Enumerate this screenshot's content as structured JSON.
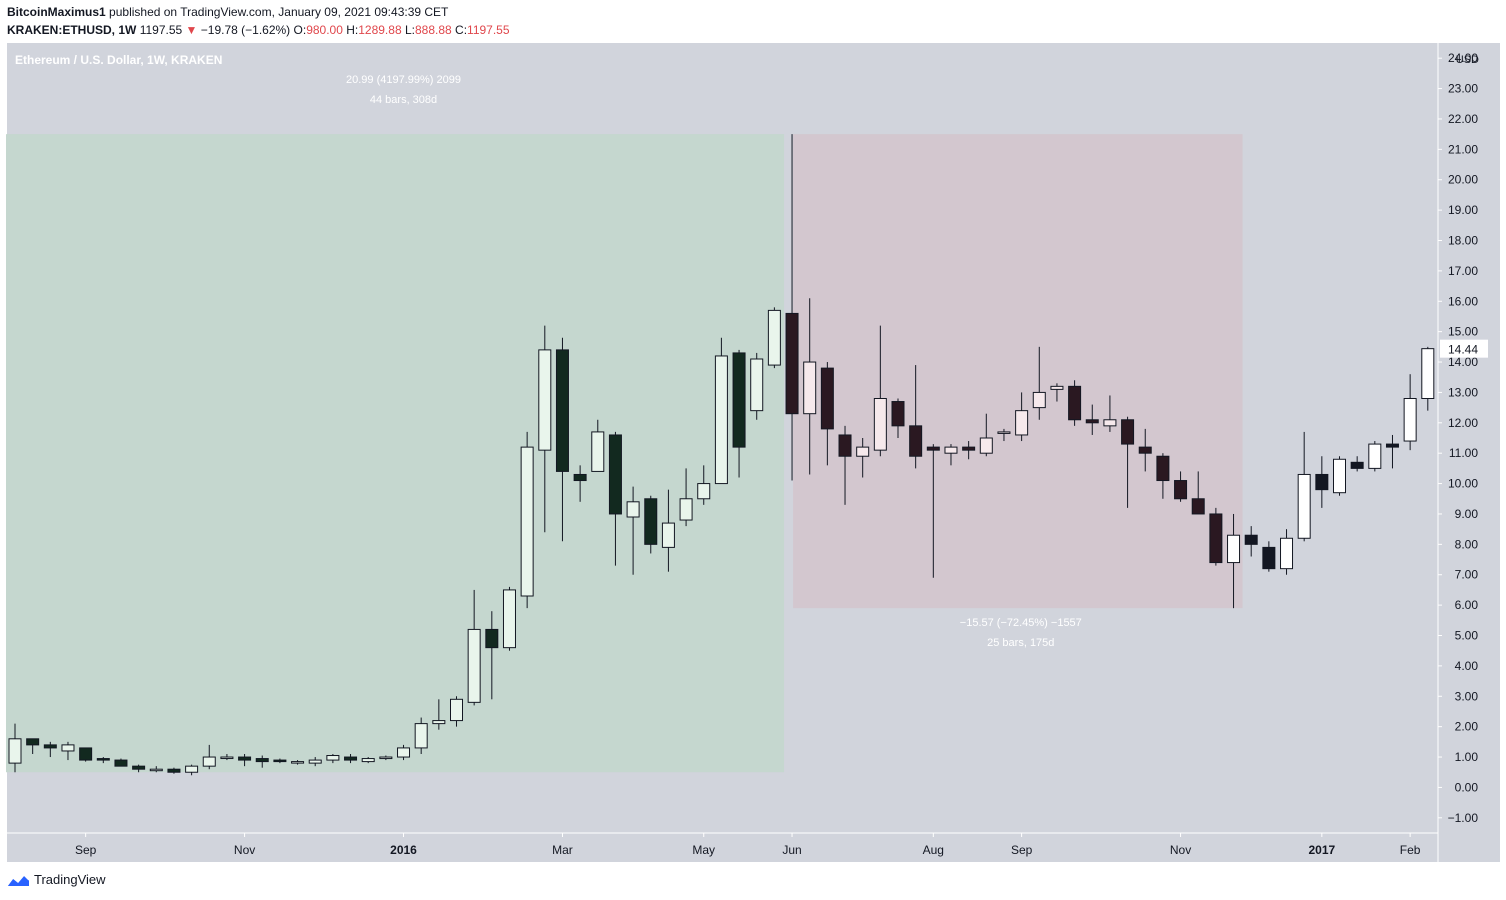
{
  "header": {
    "author": "BitcoinMaximus1",
    "published_text": "published on TradingView.com, January 09, 2021 09:43:39 CET",
    "symbol": "KRAKEN:ETHUSD",
    "interval": "1W",
    "last": "1197.55",
    "change": "−19.78 (−1.62%)",
    "o_label": "O:",
    "o_value": "980.00",
    "h_label": "H:",
    "h_value": "1289.88",
    "l_label": "L:",
    "l_value": "888.88",
    "c_label": "C:",
    "c_value": "1197.55"
  },
  "footer": {
    "brand": "TradingView"
  },
  "colors": {
    "plot_bg": "#d1d4dc",
    "green_zone": "#c5d7cf",
    "red_zone": "#d3c7cf",
    "bull_green_body": "#e9f5ec",
    "bear_green_body": "#12291f",
    "bull_red_body": "#f6e9ec",
    "bear_red_body": "#2a1821",
    "bull_gray_body": "#ffffff",
    "bear_gray_body": "#131722",
    "text_muted": "#ffffff",
    "axis_text": "#131722",
    "red_arrow": "#e0474c"
  },
  "chart_data": {
    "type": "candlestick",
    "title": "Ethereum / U.S. Dollar, 1W, KRAKEN",
    "currency": "USD",
    "ylim": [
      -1.5,
      24.5
    ],
    "y_ticks": [
      "−1.00",
      "0.00",
      "1.00",
      "2.00",
      "3.00",
      "4.00",
      "5.00",
      "6.00",
      "7.00",
      "8.00",
      "9.00",
      "10.00",
      "11.00",
      "12.00",
      "13.00",
      "14.00",
      "15.00",
      "16.00",
      "17.00",
      "18.00",
      "19.00",
      "20.00",
      "21.00",
      "22.00",
      "23.00",
      "24.00"
    ],
    "x_ticks": [
      {
        "label": "Sep",
        "index": 4
      },
      {
        "label": "Nov",
        "index": 13
      },
      {
        "label": "2016",
        "index": 22
      },
      {
        "label": "Mar",
        "index": 31
      },
      {
        "label": "May",
        "index": 39
      },
      {
        "label": "Jun",
        "index": 44
      },
      {
        "label": "Aug",
        "index": 52
      },
      {
        "label": "Sep",
        "index": 57
      },
      {
        "label": "Nov",
        "index": 66
      },
      {
        "label": "2017",
        "index": 74
      },
      {
        "label": "Feb",
        "index": 79
      }
    ],
    "last_price_label": "14.44",
    "candles": [
      [
        0.8,
        2.1,
        0.5,
        1.6
      ],
      [
        1.6,
        1.6,
        1.1,
        1.4
      ],
      [
        1.4,
        1.5,
        1.0,
        1.3
      ],
      [
        1.2,
        1.5,
        0.9,
        1.4
      ],
      [
        1.3,
        1.3,
        0.85,
        0.9
      ],
      [
        0.95,
        1.0,
        0.8,
        0.9
      ],
      [
        0.9,
        0.95,
        0.7,
        0.7
      ],
      [
        0.7,
        0.75,
        0.5,
        0.6
      ],
      [
        0.6,
        0.7,
        0.5,
        0.6
      ],
      [
        0.6,
        0.65,
        0.45,
        0.5
      ],
      [
        0.5,
        0.75,
        0.4,
        0.7
      ],
      [
        0.7,
        1.4,
        0.6,
        1.0
      ],
      [
        1.0,
        1.1,
        0.9,
        1.0
      ],
      [
        1.0,
        1.1,
        0.7,
        0.9
      ],
      [
        0.95,
        1.05,
        0.65,
        0.85
      ],
      [
        0.9,
        0.95,
        0.8,
        0.85
      ],
      [
        0.85,
        0.9,
        0.75,
        0.85
      ],
      [
        0.8,
        1.0,
        0.7,
        0.9
      ],
      [
        0.9,
        1.1,
        0.8,
        1.05
      ],
      [
        1.0,
        1.1,
        0.8,
        0.9
      ],
      [
        0.85,
        1.0,
        0.8,
        0.95
      ],
      [
        0.95,
        1.05,
        0.9,
        1.0
      ],
      [
        1.0,
        1.4,
        0.9,
        1.3
      ],
      [
        1.3,
        2.3,
        1.1,
        2.1
      ],
      [
        2.1,
        2.9,
        1.9,
        2.2
      ],
      [
        2.2,
        3.0,
        2.0,
        2.9
      ],
      [
        2.8,
        6.5,
        2.7,
        5.2
      ],
      [
        5.2,
        5.8,
        2.9,
        4.6
      ],
      [
        4.6,
        6.6,
        4.5,
        6.5
      ],
      [
        6.3,
        11.7,
        5.9,
        11.2
      ],
      [
        11.1,
        15.2,
        8.4,
        14.4
      ],
      [
        14.4,
        14.8,
        8.1,
        10.4
      ],
      [
        10.3,
        10.6,
        9.4,
        10.1
      ],
      [
        10.4,
        12.1,
        10.4,
        11.7
      ],
      [
        11.6,
        11.7,
        7.3,
        9.0
      ],
      [
        8.9,
        9.9,
        7.0,
        9.4
      ],
      [
        9.5,
        9.6,
        7.7,
        8.0
      ],
      [
        7.9,
        9.8,
        7.1,
        8.7
      ],
      [
        8.8,
        10.5,
        8.6,
        9.5
      ],
      [
        9.5,
        10.6,
        9.3,
        10.0
      ],
      [
        10.0,
        14.8,
        10.0,
        14.2
      ],
      [
        14.3,
        14.4,
        10.2,
        11.2
      ],
      [
        12.4,
        14.3,
        12.1,
        14.1
      ],
      [
        13.9,
        15.8,
        13.8,
        15.7
      ],
      [
        15.6,
        21.5,
        10.1,
        12.3
      ],
      [
        12.3,
        16.1,
        10.3,
        14.0
      ],
      [
        13.8,
        14.0,
        10.6,
        11.8
      ],
      [
        11.6,
        11.9,
        9.3,
        10.9
      ],
      [
        10.9,
        11.5,
        10.2,
        11.2
      ],
      [
        11.1,
        15.2,
        10.9,
        12.8
      ],
      [
        12.7,
        12.8,
        11.5,
        11.9
      ],
      [
        11.9,
        13.9,
        10.5,
        10.9
      ],
      [
        11.2,
        11.3,
        6.9,
        11.1
      ],
      [
        11.0,
        11.3,
        10.6,
        11.2
      ],
      [
        11.2,
        11.4,
        10.8,
        11.1
      ],
      [
        11.0,
        12.3,
        10.9,
        11.5
      ],
      [
        11.7,
        11.8,
        11.4,
        11.7
      ],
      [
        11.6,
        13.0,
        11.4,
        12.4
      ],
      [
        12.5,
        14.5,
        12.1,
        13.0
      ],
      [
        13.1,
        13.3,
        12.7,
        13.2
      ],
      [
        13.2,
        13.4,
        11.9,
        12.1
      ],
      [
        12.1,
        12.6,
        11.6,
        12.0
      ],
      [
        11.9,
        12.9,
        11.7,
        12.1
      ],
      [
        12.1,
        12.2,
        9.2,
        11.3
      ],
      [
        11.2,
        11.8,
        10.4,
        11.0
      ],
      [
        10.9,
        11.0,
        9.5,
        10.1
      ],
      [
        10.1,
        10.4,
        9.4,
        9.5
      ],
      [
        9.5,
        10.4,
        9.2,
        9.0
      ],
      [
        9.0,
        9.2,
        7.3,
        7.4
      ],
      [
        7.4,
        9.0,
        5.9,
        8.3
      ],
      [
        8.3,
        8.6,
        7.6,
        8.0
      ],
      [
        7.9,
        8.1,
        7.1,
        7.2
      ],
      [
        7.2,
        8.5,
        7.0,
        8.2
      ],
      [
        8.2,
        11.7,
        8.1,
        10.3
      ],
      [
        10.3,
        10.9,
        9.2,
        9.8
      ],
      [
        9.7,
        10.9,
        9.6,
        10.8
      ],
      [
        10.7,
        10.9,
        10.4,
        10.5
      ],
      [
        10.5,
        11.4,
        10.4,
        11.3
      ],
      [
        11.3,
        11.6,
        10.5,
        11.2
      ],
      [
        11.4,
        13.6,
        11.1,
        12.8
      ],
      [
        12.8,
        14.5,
        12.4,
        14.44
      ]
    ],
    "measure_green": {
      "start_index": 0,
      "end_index": 44,
      "price_low": 0.5,
      "price_high": 21.5,
      "label_line1": "20.99 (4197.99%) 2099",
      "label_line2": "44 bars, 308d"
    },
    "measure_red": {
      "start_index": 44,
      "end_index": 69,
      "price_low": 5.9,
      "price_high": 21.5,
      "label_line1": "−15.57 (−72.45%) −1557",
      "label_line2": "25 bars, 175d"
    }
  }
}
